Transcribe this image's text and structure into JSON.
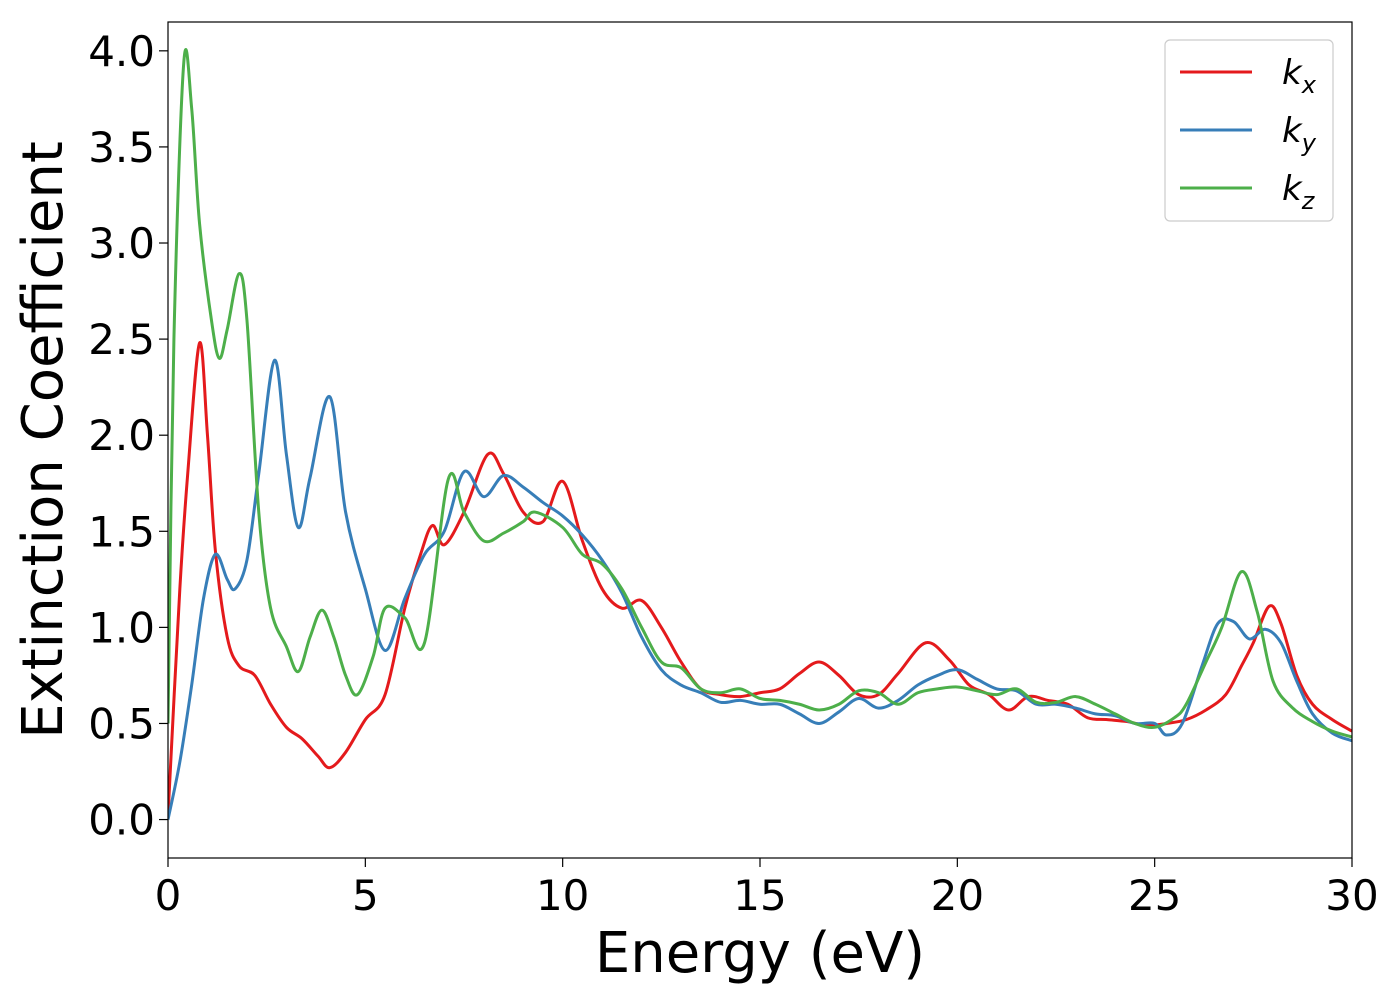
{
  "chart_data": {
    "type": "line",
    "title": "",
    "xlabel": "Energy (eV)",
    "ylabel": "Extinction Coefficient",
    "xlim": [
      0,
      30
    ],
    "ylim": [
      -0.2,
      4.15
    ],
    "x_ticks": [
      "0",
      "5",
      "10",
      "15",
      "20",
      "25",
      "30"
    ],
    "y_ticks": [
      "0.0",
      "0.5",
      "1.0",
      "1.5",
      "2.0",
      "2.5",
      "3.0",
      "3.5",
      "4.0"
    ],
    "grid": false,
    "legend_position": "top-right",
    "series": [
      {
        "name": "kx",
        "legend_main": "k",
        "legend_sub": "x",
        "color": "#e41a1c",
        "points": [
          [
            0,
            0.02
          ],
          [
            0.3,
            1.2
          ],
          [
            0.5,
            1.8
          ],
          [
            0.8,
            2.48
          ],
          [
            1.0,
            2.0
          ],
          [
            1.2,
            1.4
          ],
          [
            1.5,
            0.95
          ],
          [
            1.8,
            0.8
          ],
          [
            2.2,
            0.75
          ],
          [
            2.6,
            0.6
          ],
          [
            3.0,
            0.48
          ],
          [
            3.4,
            0.42
          ],
          [
            3.8,
            0.33
          ],
          [
            4.1,
            0.27
          ],
          [
            4.5,
            0.35
          ],
          [
            5.0,
            0.52
          ],
          [
            5.5,
            0.65
          ],
          [
            6.0,
            1.1
          ],
          [
            6.4,
            1.38
          ],
          [
            6.7,
            1.53
          ],
          [
            7.0,
            1.43
          ],
          [
            7.5,
            1.6
          ],
          [
            8.1,
            1.9
          ],
          [
            8.5,
            1.8
          ],
          [
            9.0,
            1.6
          ],
          [
            9.5,
            1.55
          ],
          [
            10.0,
            1.76
          ],
          [
            10.5,
            1.45
          ],
          [
            11.0,
            1.2
          ],
          [
            11.5,
            1.1
          ],
          [
            12.0,
            1.14
          ],
          [
            12.5,
            1.0
          ],
          [
            13.0,
            0.82
          ],
          [
            13.5,
            0.68
          ],
          [
            14.0,
            0.65
          ],
          [
            14.5,
            0.64
          ],
          [
            15.0,
            0.66
          ],
          [
            15.5,
            0.68
          ],
          [
            16.0,
            0.76
          ],
          [
            16.5,
            0.82
          ],
          [
            17.0,
            0.75
          ],
          [
            17.5,
            0.65
          ],
          [
            18.0,
            0.65
          ],
          [
            18.5,
            0.76
          ],
          [
            19.2,
            0.92
          ],
          [
            19.8,
            0.83
          ],
          [
            20.3,
            0.7
          ],
          [
            20.8,
            0.65
          ],
          [
            21.3,
            0.57
          ],
          [
            21.8,
            0.64
          ],
          [
            22.3,
            0.62
          ],
          [
            22.8,
            0.6
          ],
          [
            23.3,
            0.53
          ],
          [
            23.8,
            0.52
          ],
          [
            24.3,
            0.51
          ],
          [
            24.8,
            0.49
          ],
          [
            25.3,
            0.5
          ],
          [
            25.8,
            0.52
          ],
          [
            26.3,
            0.57
          ],
          [
            26.8,
            0.65
          ],
          [
            27.2,
            0.8
          ],
          [
            27.5,
            0.92
          ],
          [
            27.9,
            1.11
          ],
          [
            28.2,
            1.02
          ],
          [
            28.6,
            0.75
          ],
          [
            29.0,
            0.6
          ],
          [
            29.5,
            0.52
          ],
          [
            30.0,
            0.46
          ]
        ]
      },
      {
        "name": "ky",
        "legend_main": "k",
        "legend_sub": "y",
        "color": "#377eb8",
        "points": [
          [
            0,
            0.0
          ],
          [
            0.3,
            0.3
          ],
          [
            0.6,
            0.7
          ],
          [
            0.9,
            1.15
          ],
          [
            1.2,
            1.38
          ],
          [
            1.5,
            1.25
          ],
          [
            1.7,
            1.2
          ],
          [
            2.0,
            1.35
          ],
          [
            2.3,
            1.8
          ],
          [
            2.7,
            2.39
          ],
          [
            3.0,
            1.9
          ],
          [
            3.3,
            1.52
          ],
          [
            3.6,
            1.78
          ],
          [
            4.1,
            2.2
          ],
          [
            4.5,
            1.6
          ],
          [
            5.0,
            1.2
          ],
          [
            5.5,
            0.88
          ],
          [
            6.0,
            1.15
          ],
          [
            6.5,
            1.38
          ],
          [
            7.0,
            1.5
          ],
          [
            7.5,
            1.81
          ],
          [
            8.0,
            1.68
          ],
          [
            8.5,
            1.79
          ],
          [
            9.0,
            1.73
          ],
          [
            9.5,
            1.65
          ],
          [
            10.0,
            1.58
          ],
          [
            10.5,
            1.48
          ],
          [
            11.0,
            1.35
          ],
          [
            11.5,
            1.18
          ],
          [
            12.0,
            0.95
          ],
          [
            12.5,
            0.78
          ],
          [
            13.0,
            0.7
          ],
          [
            13.5,
            0.66
          ],
          [
            14.0,
            0.61
          ],
          [
            14.5,
            0.62
          ],
          [
            15.0,
            0.6
          ],
          [
            15.5,
            0.6
          ],
          [
            16.0,
            0.55
          ],
          [
            16.5,
            0.5
          ],
          [
            17.0,
            0.56
          ],
          [
            17.5,
            0.63
          ],
          [
            18.0,
            0.58
          ],
          [
            18.5,
            0.62
          ],
          [
            19.0,
            0.7
          ],
          [
            19.5,
            0.75
          ],
          [
            20.0,
            0.78
          ],
          [
            20.5,
            0.73
          ],
          [
            21.0,
            0.68
          ],
          [
            21.5,
            0.67
          ],
          [
            22.0,
            0.6
          ],
          [
            22.5,
            0.6
          ],
          [
            23.0,
            0.58
          ],
          [
            23.5,
            0.55
          ],
          [
            24.0,
            0.54
          ],
          [
            24.5,
            0.5
          ],
          [
            25.0,
            0.5
          ],
          [
            25.3,
            0.44
          ],
          [
            25.7,
            0.5
          ],
          [
            26.2,
            0.8
          ],
          [
            26.6,
            1.02
          ],
          [
            27.0,
            1.03
          ],
          [
            27.4,
            0.94
          ],
          [
            27.8,
            0.99
          ],
          [
            28.2,
            0.92
          ],
          [
            28.6,
            0.72
          ],
          [
            29.0,
            0.55
          ],
          [
            29.5,
            0.45
          ],
          [
            30.0,
            0.41
          ]
        ]
      },
      {
        "name": "kz",
        "legend_main": "k",
        "legend_sub": "z",
        "color": "#4daf4a",
        "points": [
          [
            0,
            0.5
          ],
          [
            0.15,
            2.5
          ],
          [
            0.4,
            3.94
          ],
          [
            0.6,
            3.7
          ],
          [
            0.8,
            3.1
          ],
          [
            1.1,
            2.6
          ],
          [
            1.3,
            2.4
          ],
          [
            1.5,
            2.55
          ],
          [
            1.8,
            2.84
          ],
          [
            2.0,
            2.6
          ],
          [
            2.3,
            1.6
          ],
          [
            2.6,
            1.1
          ],
          [
            3.0,
            0.9
          ],
          [
            3.3,
            0.77
          ],
          [
            3.6,
            0.95
          ],
          [
            3.9,
            1.09
          ],
          [
            4.2,
            0.95
          ],
          [
            4.5,
            0.75
          ],
          [
            4.8,
            0.65
          ],
          [
            5.2,
            0.85
          ],
          [
            5.5,
            1.1
          ],
          [
            6.0,
            1.05
          ],
          [
            6.5,
            0.92
          ],
          [
            7.1,
            1.77
          ],
          [
            7.5,
            1.6
          ],
          [
            8.0,
            1.45
          ],
          [
            8.5,
            1.49
          ],
          [
            9.0,
            1.55
          ],
          [
            9.3,
            1.6
          ],
          [
            10.0,
            1.52
          ],
          [
            10.5,
            1.38
          ],
          [
            11.0,
            1.33
          ],
          [
            11.5,
            1.2
          ],
          [
            12.0,
            1.0
          ],
          [
            12.5,
            0.82
          ],
          [
            13.0,
            0.79
          ],
          [
            13.5,
            0.68
          ],
          [
            14.0,
            0.66
          ],
          [
            14.5,
            0.68
          ],
          [
            15.0,
            0.63
          ],
          [
            15.5,
            0.62
          ],
          [
            16.0,
            0.6
          ],
          [
            16.5,
            0.57
          ],
          [
            17.0,
            0.6
          ],
          [
            17.5,
            0.67
          ],
          [
            18.0,
            0.66
          ],
          [
            18.5,
            0.6
          ],
          [
            19.0,
            0.66
          ],
          [
            19.5,
            0.68
          ],
          [
            20.0,
            0.69
          ],
          [
            20.5,
            0.67
          ],
          [
            21.0,
            0.65
          ],
          [
            21.5,
            0.68
          ],
          [
            22.0,
            0.61
          ],
          [
            22.5,
            0.61
          ],
          [
            23.0,
            0.64
          ],
          [
            23.5,
            0.6
          ],
          [
            24.0,
            0.55
          ],
          [
            24.5,
            0.5
          ],
          [
            25.0,
            0.48
          ],
          [
            25.5,
            0.53
          ],
          [
            25.8,
            0.6
          ],
          [
            26.3,
            0.82
          ],
          [
            26.7,
            1.0
          ],
          [
            27.2,
            1.29
          ],
          [
            27.6,
            1.08
          ],
          [
            28.0,
            0.72
          ],
          [
            28.5,
            0.58
          ],
          [
            29.0,
            0.51
          ],
          [
            29.5,
            0.46
          ],
          [
            30.0,
            0.43
          ]
        ]
      }
    ]
  }
}
